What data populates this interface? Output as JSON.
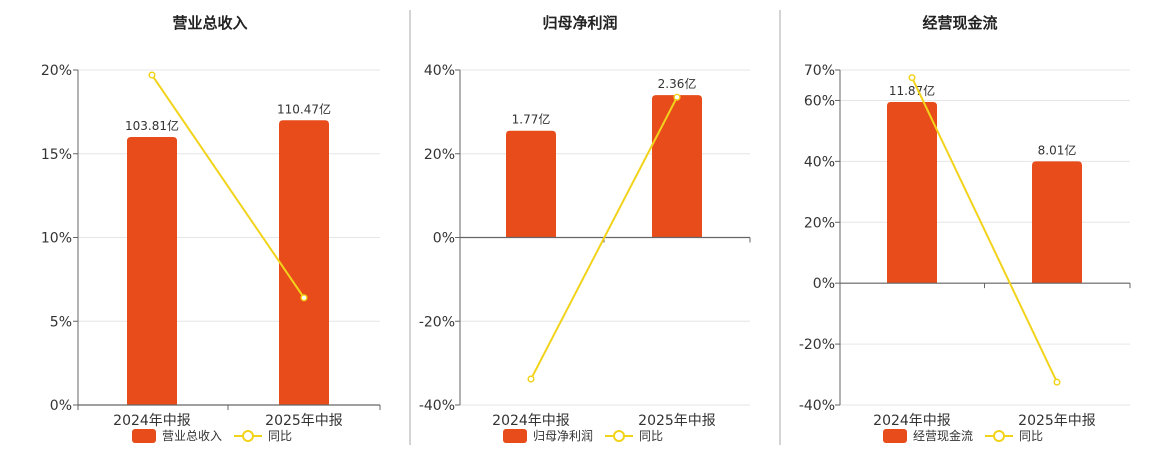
{
  "colors": {
    "bar": "#E84C1A",
    "line": "#F2D31B",
    "grid": "#E6E6E6",
    "axis": "#666666",
    "divider": "#AAAAAA"
  },
  "chart_data": [
    {
      "type": "bar",
      "title": "营业总收入",
      "categories": [
        "2024年中报",
        "2025年中报"
      ],
      "bar_labels": [
        "103.81亿",
        "110.47亿"
      ],
      "bar_values": [
        16.0,
        17.0
      ],
      "line_values": [
        19.7,
        6.4
      ],
      "ylim": [
        0,
        20
      ],
      "ticks": [
        0,
        5,
        10,
        15,
        20
      ],
      "tick_labels": [
        "0%",
        "5%",
        "10%",
        "15%",
        "20%"
      ],
      "legend": {
        "bar": "营业总收入",
        "line": "同比"
      }
    },
    {
      "type": "bar",
      "title": "归母净利润",
      "categories": [
        "2024年中报",
        "2025年中报"
      ],
      "bar_labels": [
        "1.77亿",
        "2.36亿"
      ],
      "bar_values": [
        25.5,
        34.0
      ],
      "line_values": [
        -33.8,
        33.5
      ],
      "ylim": [
        -40,
        40
      ],
      "ticks": [
        -40,
        -20,
        0,
        20,
        40
      ],
      "tick_labels": [
        "-40%",
        "-20%",
        "0%",
        "20%",
        "40%"
      ],
      "legend": {
        "bar": "归母净利润",
        "line": "同比"
      }
    },
    {
      "type": "bar",
      "title": "经营现金流",
      "categories": [
        "2024年中报",
        "2025年中报"
      ],
      "bar_labels": [
        "11.87亿",
        "8.01亿"
      ],
      "bar_values": [
        59.5,
        40.0
      ],
      "line_values": [
        67.5,
        -32.5
      ],
      "ylim": [
        -40,
        70
      ],
      "ticks": [
        -40,
        -20,
        0,
        20,
        40,
        60,
        70
      ],
      "tick_labels": [
        "-40%",
        "-20%",
        "0%",
        "20%",
        "40%",
        "60%",
        "70%"
      ],
      "legend": {
        "bar": "经营现金流",
        "line": "同比"
      }
    }
  ]
}
